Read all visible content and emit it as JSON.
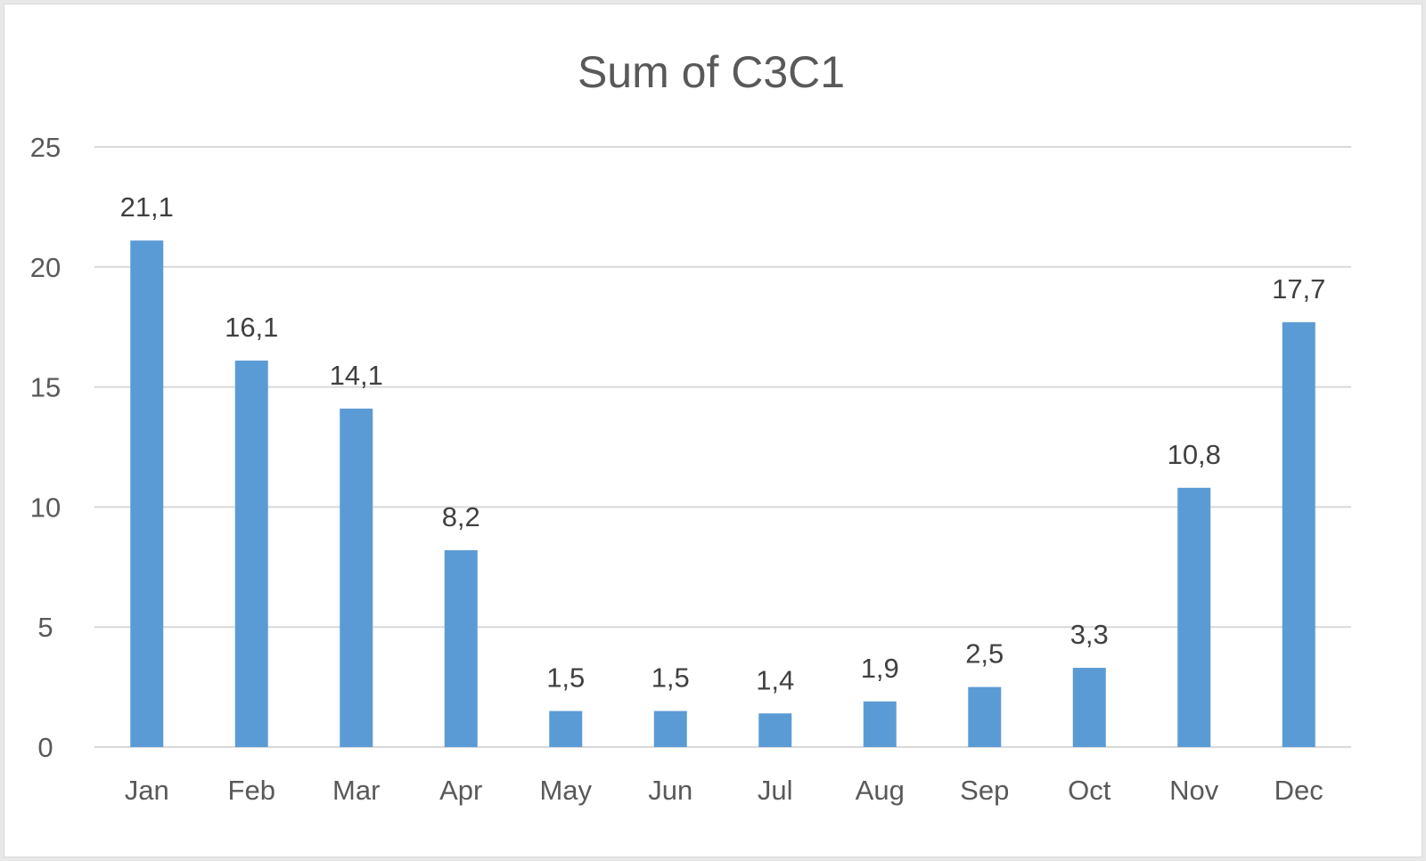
{
  "chart_data": {
    "type": "bar",
    "title": "Sum of C3C1",
    "categories": [
      "Jan",
      "Feb",
      "Mar",
      "Apr",
      "May",
      "Jun",
      "Jul",
      "Aug",
      "Sep",
      "Oct",
      "Nov",
      "Dec"
    ],
    "values": [
      21.1,
      16.1,
      14.1,
      8.2,
      1.5,
      1.5,
      1.4,
      1.9,
      2.5,
      3.3,
      10.8,
      17.7
    ],
    "data_labels": [
      "21,1",
      "16,1",
      "14,1",
      "8,2",
      "1,5",
      "1,5",
      "1,4",
      "1,9",
      "2,5",
      "3,3",
      "10,8",
      "17,7"
    ],
    "ylim": [
      0,
      25
    ],
    "yticks": [
      0,
      5,
      10,
      15,
      20,
      25
    ],
    "ytick_labels": [
      "0",
      "5",
      "10",
      "15",
      "20",
      "25"
    ],
    "grid": true,
    "legend": "none",
    "bar_color": "#5b9bd5",
    "gridline_color": "#d9d9d9"
  }
}
